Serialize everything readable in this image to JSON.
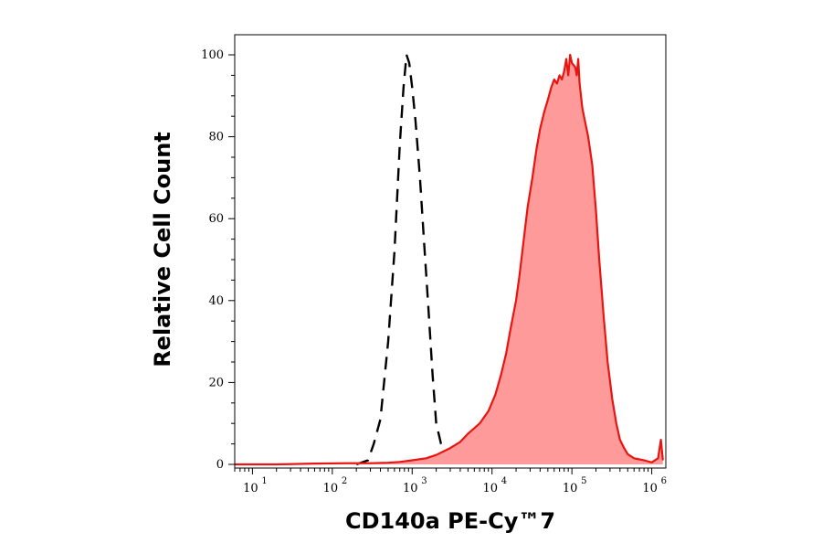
{
  "chart_data": {
    "type": "area",
    "xlabel": "CD140a PE-Cy™7",
    "ylabel": "Relative Cell Count",
    "x_scale": "log",
    "xlim": [
      6,
      1500000
    ],
    "ylim": [
      0,
      104
    ],
    "x_ticks": [
      {
        "value": 10,
        "base": "10",
        "exp": "1"
      },
      {
        "value": 100,
        "base": "10",
        "exp": "2"
      },
      {
        "value": 1000,
        "base": "10",
        "exp": "3"
      },
      {
        "value": 10000,
        "base": "10",
        "exp": "4"
      },
      {
        "value": 100000,
        "base": "10",
        "exp": "5"
      },
      {
        "value": 1000000,
        "base": "10",
        "exp": "6"
      }
    ],
    "y_ticks": [
      {
        "value": 0,
        "label": "0"
      },
      {
        "value": 20,
        "label": "20"
      },
      {
        "value": 40,
        "label": "40"
      },
      {
        "value": 60,
        "label": "60"
      },
      {
        "value": 80,
        "label": "80"
      },
      {
        "value": 100,
        "label": "100"
      }
    ],
    "series": [
      {
        "style": "dashed-outline",
        "color": "#000000",
        "points": [
          [
            200,
            0
          ],
          [
            280,
            1
          ],
          [
            330,
            5
          ],
          [
            400,
            11
          ],
          [
            500,
            30
          ],
          [
            600,
            52
          ],
          [
            700,
            78
          ],
          [
            780,
            92
          ],
          [
            850,
            100
          ],
          [
            920,
            98
          ],
          [
            1000,
            92
          ],
          [
            1100,
            84
          ],
          [
            1250,
            70
          ],
          [
            1400,
            55
          ],
          [
            1600,
            38
          ],
          [
            1800,
            22
          ],
          [
            2000,
            10
          ],
          [
            2300,
            5
          ],
          [
            2700,
            3
          ],
          [
            3200,
            1
          ],
          [
            4000,
            0
          ]
        ]
      },
      {
        "style": "filled",
        "color": "#e8140f",
        "fill": "#ff9a9a",
        "points": [
          [
            6,
            0
          ],
          [
            20,
            0
          ],
          [
            60,
            0.2
          ],
          [
            150,
            0.3
          ],
          [
            300,
            0.3
          ],
          [
            500,
            0.4
          ],
          [
            700,
            0.6
          ],
          [
            1000,
            1
          ],
          [
            1500,
            1.5
          ],
          [
            2000,
            2.3
          ],
          [
            3000,
            4
          ],
          [
            4000,
            5.5
          ],
          [
            5000,
            7.5
          ],
          [
            7000,
            10
          ],
          [
            9000,
            13
          ],
          [
            11000,
            17
          ],
          [
            13000,
            22
          ],
          [
            15000,
            27
          ],
          [
            17000,
            33
          ],
          [
            20000,
            40
          ],
          [
            22000,
            46
          ],
          [
            25000,
            55
          ],
          [
            28000,
            63
          ],
          [
            32000,
            70
          ],
          [
            36000,
            77
          ],
          [
            40000,
            82
          ],
          [
            45000,
            86
          ],
          [
            50000,
            89
          ],
          [
            55000,
            92
          ],
          [
            60000,
            94
          ],
          [
            65000,
            93
          ],
          [
            70000,
            95
          ],
          [
            75000,
            94
          ],
          [
            80000,
            96
          ],
          [
            85000,
            99
          ],
          [
            90000,
            95
          ],
          [
            95000,
            100
          ],
          [
            100000,
            98
          ],
          [
            110000,
            97
          ],
          [
            115000,
            95
          ],
          [
            120000,
            99
          ],
          [
            125000,
            93
          ],
          [
            135000,
            87
          ],
          [
            145000,
            84
          ],
          [
            160000,
            80
          ],
          [
            180000,
            73
          ],
          [
            200000,
            62
          ],
          [
            220000,
            50
          ],
          [
            250000,
            36
          ],
          [
            280000,
            25
          ],
          [
            320000,
            16
          ],
          [
            360000,
            10
          ],
          [
            400000,
            6
          ],
          [
            450000,
            4
          ],
          [
            500000,
            2.5
          ],
          [
            600000,
            1.5
          ],
          [
            800000,
            1
          ],
          [
            1000000,
            0.5
          ],
          [
            1200000,
            1.5
          ],
          [
            1300000,
            6
          ],
          [
            1380000,
            1
          ]
        ]
      }
    ]
  }
}
